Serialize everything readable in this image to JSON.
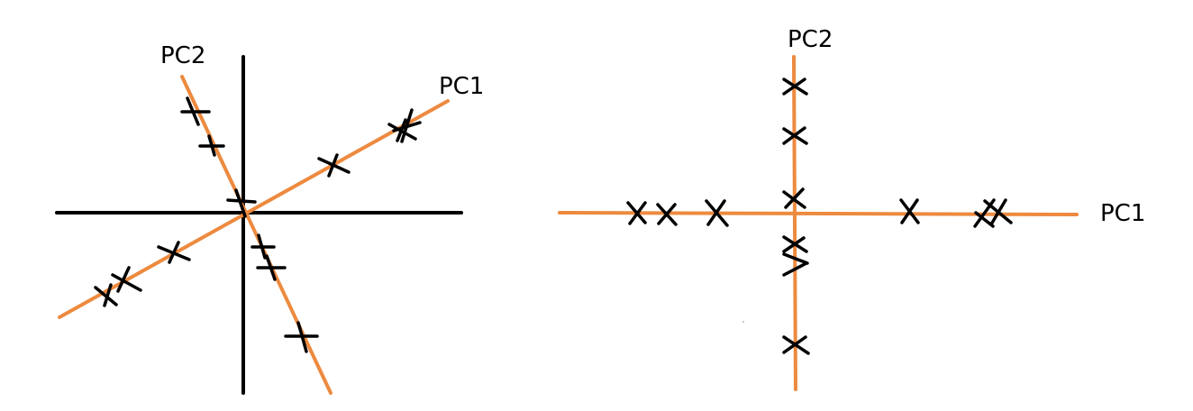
{
  "colors": {
    "pc_axis": "#ED8A3F",
    "ink": "#000000"
  },
  "left_panel": {
    "pc1_label": "PC1",
    "pc2_label": "PC2"
  },
  "right_panel": {
    "pc1_label": "PC1",
    "pc2_label": "PC2"
  }
}
